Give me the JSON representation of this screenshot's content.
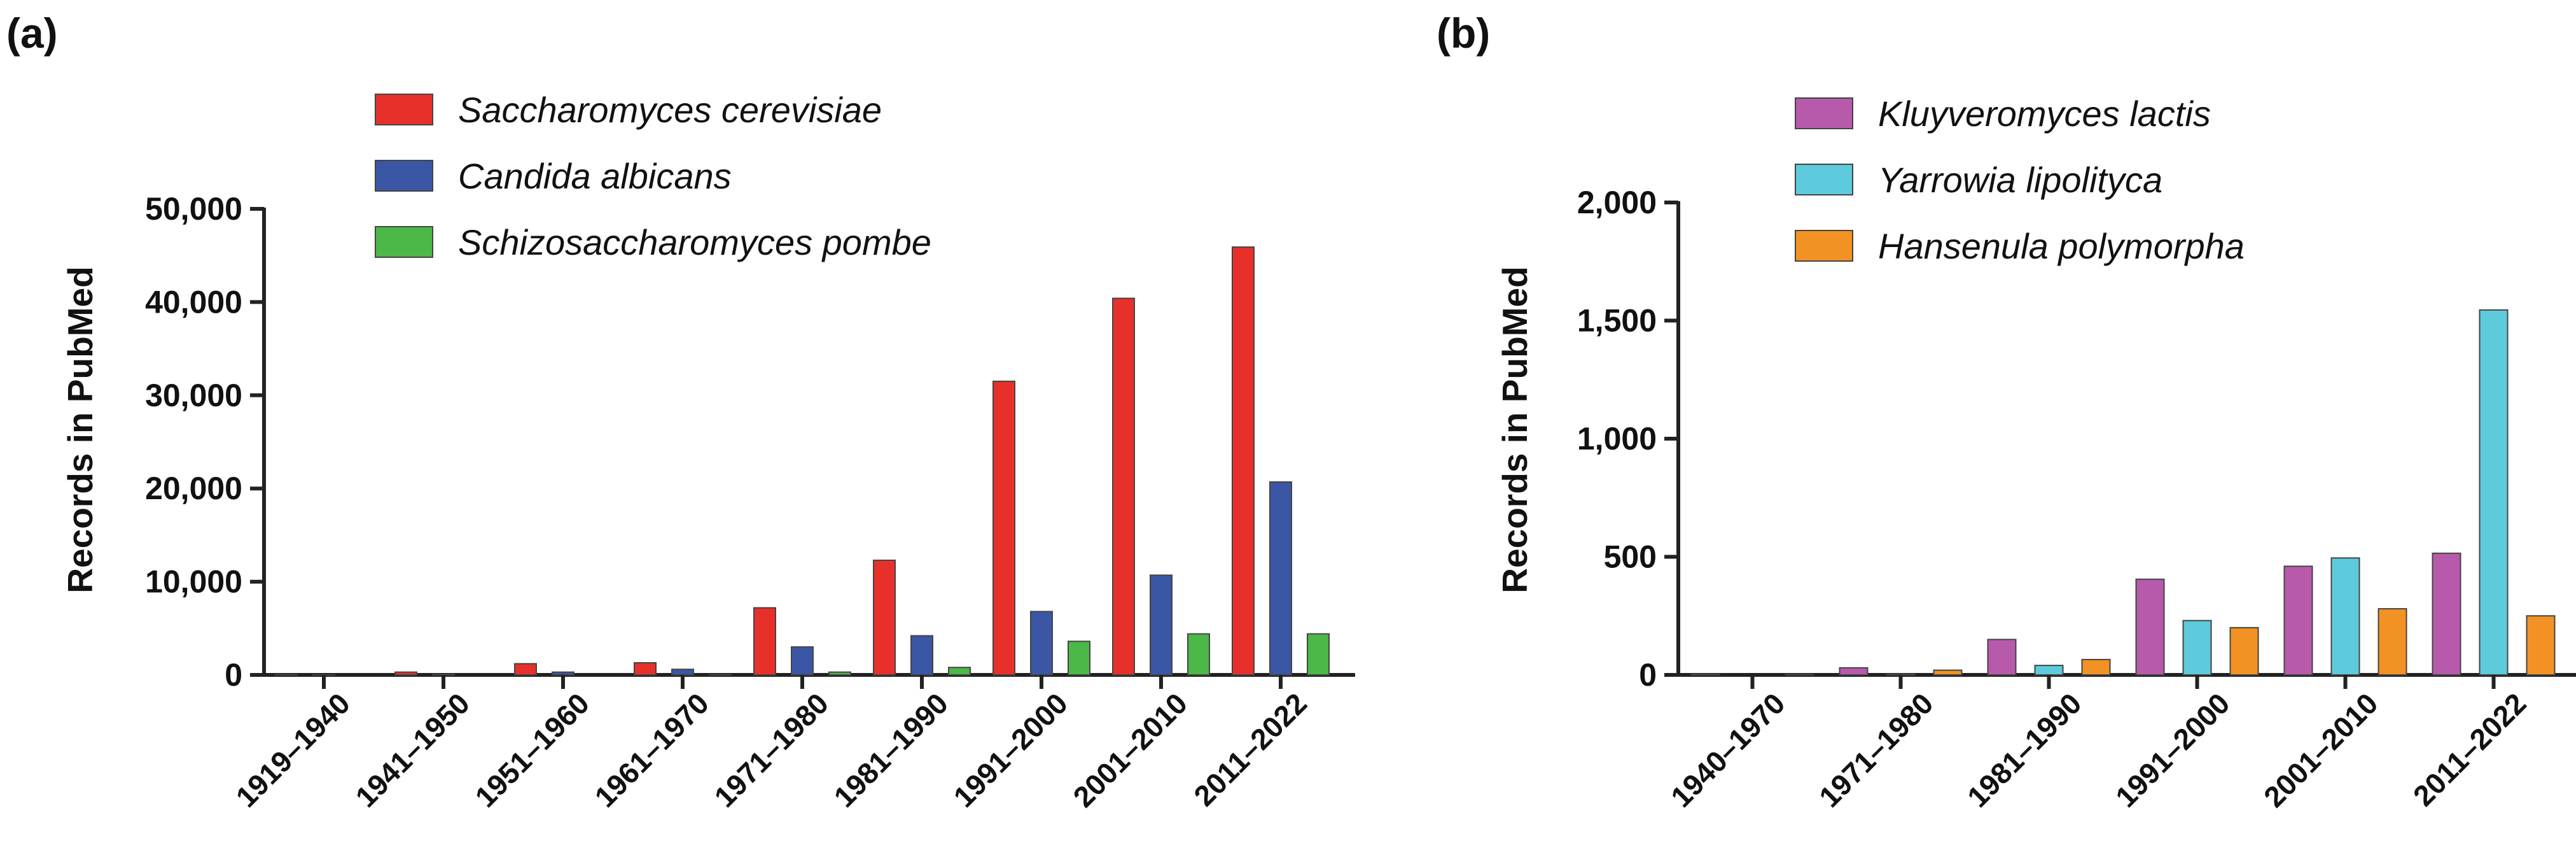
{
  "chart_data": [
    {
      "type": "bar",
      "panel_label": "(a)",
      "title": "",
      "xlabel": "",
      "ylabel": "Records  in PubMed",
      "ylim": [
        0,
        50000
      ],
      "yticks": [
        0,
        10000,
        20000,
        30000,
        40000,
        50000
      ],
      "ytick_labels": [
        "0",
        "10,000",
        "20,000",
        "30,000",
        "40,000",
        "50,000"
      ],
      "categories": [
        "1919–1940",
        "1941–1950",
        "1951–1960",
        "1961–1970",
        "1971–1980",
        "1981–1990",
        "1991–2000",
        "2001–2010",
        "2011–2022"
      ],
      "legend_position": "top-left",
      "series": [
        {
          "name": "Saccharomyces cerevisiae",
          "color": "#e8302a",
          "values": [
            30,
            300,
            1200,
            1300,
            7200,
            12300,
            31500,
            40400,
            45900
          ]
        },
        {
          "name": "Candida albicans",
          "color": "#3a56a5",
          "values": [
            10,
            60,
            300,
            600,
            3000,
            4200,
            6800,
            10700,
            20700
          ]
        },
        {
          "name": "Schizosaccharomyces pombe",
          "color": "#4cb847",
          "values": [
            0,
            0,
            0,
            30,
            300,
            800,
            3600,
            4400,
            4400
          ]
        }
      ]
    },
    {
      "type": "bar",
      "panel_label": "(b)",
      "title": "",
      "xlabel": "",
      "ylabel": "Records  in PubMed",
      "ylim": [
        0,
        2000
      ],
      "yticks": [
        0,
        500,
        1000,
        1500,
        2000
      ],
      "ytick_labels": [
        "0",
        "500",
        "1,000",
        "1,500",
        "2,000"
      ],
      "categories": [
        "1940–1970",
        "1971–1980",
        "1981–1990",
        "1991–2000",
        "2001–2010",
        "2011–2022"
      ],
      "legend_position": "top-left",
      "series": [
        {
          "name": "Kluyveromyces lactis",
          "color": "#b85aab",
          "values": [
            3,
            30,
            150,
            405,
            460,
            515
          ]
        },
        {
          "name": "Yarrowia lipolityca",
          "color": "#5dcbdc",
          "values": [
            0,
            3,
            40,
            230,
            495,
            1545
          ]
        },
        {
          "name": "Hansenula polymorpha",
          "color": "#f39224",
          "values": [
            2,
            20,
            65,
            200,
            280,
            250
          ]
        }
      ]
    }
  ]
}
